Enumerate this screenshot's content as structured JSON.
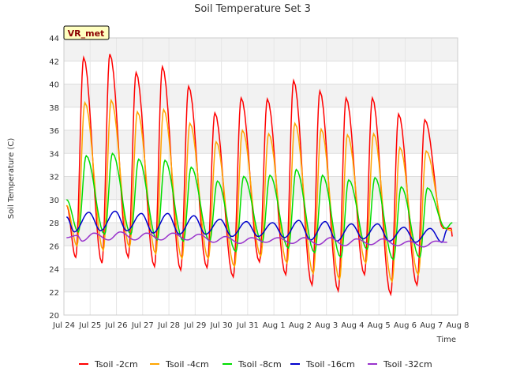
{
  "chart_data": {
    "type": "line",
    "title": "Soil Temperature Set 3",
    "xlabel": "Time",
    "ylabel": "Soil Temperature (C)",
    "badge": "VR_met",
    "ylim": [
      20,
      44
    ],
    "yticks": [
      20,
      22,
      24,
      26,
      28,
      30,
      32,
      34,
      36,
      38,
      40,
      42,
      44
    ],
    "xlim": [
      0,
      15
    ],
    "xtick_labels": [
      "Jul 24",
      "Jul 25",
      "Jul 26",
      "Jul 27",
      "Jul 28",
      "Jul 29",
      "Jul 30",
      "Jul 31",
      "Aug 1",
      "Aug 2",
      "Aug 3",
      "Aug 4",
      "Aug 5",
      "Aug 6",
      "Aug 7",
      "Aug 8"
    ],
    "grid": true,
    "legend_position": "bottom",
    "series": [
      {
        "name": "Tsoil -2cm",
        "color": "#ff0000",
        "x": [
          0.1,
          0.45,
          0.75,
          1.45,
          1.75,
          2.45,
          2.75,
          3.45,
          3.75,
          4.45,
          4.75,
          5.45,
          5.75,
          6.45,
          6.75,
          7.45,
          7.75,
          8.45,
          8.75,
          9.45,
          9.75,
          10.45,
          10.75,
          11.45,
          11.75,
          12.45,
          12.75,
          13.45,
          13.75,
          14.45,
          14.75,
          14.8
        ],
        "y": [
          29.5,
          25.0,
          42.3,
          24.5,
          42.6,
          25.0,
          41.0,
          24.2,
          41.5,
          23.9,
          39.8,
          24.1,
          37.5,
          23.3,
          38.8,
          24.6,
          38.7,
          23.5,
          40.3,
          22.6,
          39.4,
          22.1,
          38.8,
          23.5,
          38.8,
          21.8,
          37.4,
          22.6,
          36.9,
          27.5,
          27.5,
          26.8
        ]
      },
      {
        "name": "Tsoil -4cm",
        "color": "#ffa500",
        "x": [
          0.1,
          0.5,
          0.8,
          1.5,
          1.8,
          2.5,
          2.8,
          3.5,
          3.8,
          4.5,
          4.8,
          5.5,
          5.8,
          6.5,
          6.8,
          7.5,
          7.8,
          8.5,
          8.8,
          9.5,
          9.8,
          10.5,
          10.8,
          11.5,
          11.8,
          12.5,
          12.8,
          13.5,
          13.8,
          14.5,
          14.8
        ],
        "y": [
          29.5,
          26.0,
          38.4,
          25.6,
          38.6,
          25.9,
          37.6,
          25.3,
          37.8,
          24.9,
          36.6,
          24.9,
          35.0,
          24.2,
          36.0,
          25.1,
          35.7,
          24.5,
          36.6,
          23.6,
          36.1,
          23.1,
          35.6,
          24.5,
          35.7,
          22.9,
          34.5,
          23.5,
          34.2,
          27.5,
          27.3
        ]
      },
      {
        "name": "Tsoil -8cm",
        "color": "#00dd00",
        "x": [
          0.1,
          0.55,
          0.85,
          1.55,
          1.85,
          2.55,
          2.85,
          3.55,
          3.85,
          4.55,
          4.85,
          5.55,
          5.85,
          6.55,
          6.85,
          7.55,
          7.85,
          8.55,
          8.85,
          9.55,
          9.85,
          10.55,
          10.85,
          11.55,
          11.85,
          12.55,
          12.85,
          13.55,
          13.85,
          14.55,
          14.8
        ],
        "y": [
          30.0,
          27.2,
          33.8,
          27.0,
          34.0,
          27.0,
          33.5,
          26.5,
          33.4,
          26.4,
          32.8,
          26.4,
          31.6,
          25.5,
          32.0,
          26.3,
          32.1,
          25.8,
          32.6,
          25.4,
          32.1,
          25.0,
          31.7,
          25.7,
          31.9,
          24.8,
          31.1,
          25.0,
          31.0,
          27.5,
          28.0
        ]
      },
      {
        "name": "Tsoil -16cm",
        "color": "#0000cc",
        "x": [
          0.1,
          0.4,
          0.95,
          1.4,
          1.95,
          2.4,
          2.95,
          3.4,
          3.95,
          4.4,
          4.95,
          5.4,
          5.95,
          6.4,
          6.95,
          7.4,
          7.95,
          8.4,
          8.95,
          9.4,
          9.95,
          10.4,
          10.95,
          11.4,
          11.95,
          12.4,
          12.95,
          13.4,
          13.95,
          14.4,
          14.6
        ],
        "y": [
          28.5,
          27.2,
          28.9,
          27.3,
          29.0,
          27.3,
          28.8,
          27.1,
          28.8,
          27.0,
          28.6,
          27.0,
          28.3,
          26.8,
          28.1,
          26.8,
          28.0,
          26.7,
          28.2,
          26.5,
          28.1,
          26.4,
          27.9,
          26.6,
          27.9,
          26.4,
          27.6,
          26.3,
          27.5,
          26.3,
          27.4
        ]
      },
      {
        "name": "Tsoil -32cm",
        "color": "#9933cc",
        "x": [
          0.1,
          0.5,
          0.7,
          1.15,
          1.7,
          2.15,
          2.7,
          3.15,
          3.7,
          4.15,
          4.7,
          5.15,
          5.7,
          6.15,
          6.7,
          7.15,
          7.7,
          8.15,
          8.7,
          9.15,
          9.7,
          10.15,
          10.7,
          11.15,
          11.7,
          12.15,
          12.7,
          13.15,
          13.7,
          14.15,
          14.6
        ],
        "y": [
          26.7,
          26.9,
          26.4,
          27.1,
          26.5,
          27.2,
          26.5,
          27.1,
          26.5,
          27.1,
          26.5,
          27.0,
          26.3,
          26.8,
          26.2,
          26.7,
          26.3,
          26.7,
          26.2,
          26.7,
          26.1,
          26.7,
          26.0,
          26.6,
          26.1,
          26.6,
          26.0,
          26.4,
          25.9,
          26.4,
          26.3
        ]
      }
    ]
  }
}
